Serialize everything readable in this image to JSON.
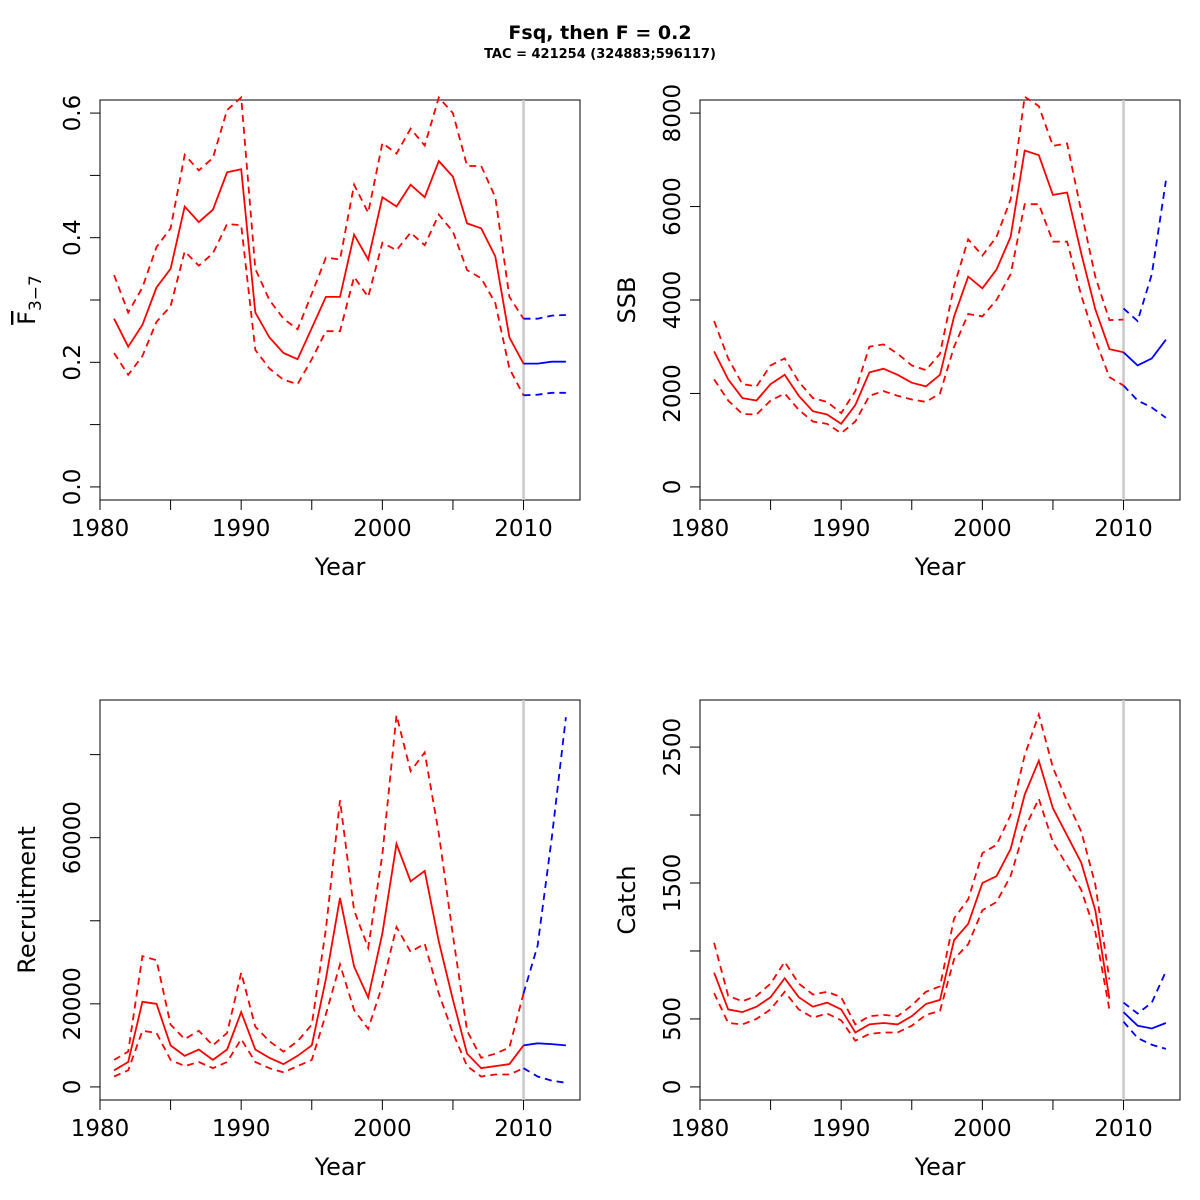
{
  "title": "Fsq, then F = 0.2",
  "subtitle": "TAC = 421254 (324883;596117)",
  "colors": {
    "historical": "#ff0000",
    "projection": "#0000ff",
    "divider": "#c8c8c8"
  },
  "chart_data": [
    {
      "type": "line",
      "xlabel": "Year",
      "ylabel": "F",
      "ylabel_sub": "3−7",
      "xlim": [
        1980,
        2014
      ],
      "ylim": [
        0,
        0.6
      ],
      "xticks": [
        1980,
        1990,
        2000,
        2010
      ],
      "minor_xticks": [
        1985,
        1995,
        2005
      ],
      "yticks": [
        0.0,
        0.2,
        0.4,
        0.6
      ],
      "ytick_labels": [
        "0.0",
        "0.2",
        "0.4",
        "0.6"
      ],
      "minor_yticks": [
        0.1,
        0.3,
        0.5
      ],
      "divider_x": 2010,
      "x": [
        1981,
        1982,
        1983,
        1984,
        1985,
        1986,
        1987,
        1988,
        1989,
        1990,
        1991,
        1992,
        1993,
        1994,
        1995,
        1996,
        1997,
        1998,
        1999,
        2000,
        2001,
        2002,
        2003,
        2004,
        2005,
        2006,
        2007,
        2008,
        2009,
        2010
      ],
      "series": [
        {
          "role": "estimate",
          "values": [
            0.27,
            0.225,
            0.26,
            0.32,
            0.35,
            0.45,
            0.425,
            0.445,
            0.505,
            0.51,
            0.28,
            0.24,
            0.215,
            0.205,
            0.255,
            0.305,
            0.305,
            0.405,
            0.365,
            0.465,
            0.45,
            0.485,
            0.465,
            0.523,
            0.498,
            0.423,
            0.415,
            0.37,
            0.24,
            0.198
          ]
        },
        {
          "role": "upper",
          "values": [
            0.34,
            0.28,
            0.32,
            0.385,
            0.415,
            0.533,
            0.508,
            0.528,
            0.605,
            0.625,
            0.35,
            0.3,
            0.27,
            0.253,
            0.31,
            0.368,
            0.365,
            0.485,
            0.44,
            0.552,
            0.535,
            0.575,
            0.548,
            0.625,
            0.6,
            0.515,
            0.515,
            0.465,
            0.305,
            0.27
          ]
        },
        {
          "role": "lower",
          "values": [
            0.215,
            0.18,
            0.21,
            0.265,
            0.29,
            0.378,
            0.355,
            0.375,
            0.422,
            0.42,
            0.22,
            0.19,
            0.172,
            0.165,
            0.205,
            0.25,
            0.25,
            0.337,
            0.305,
            0.392,
            0.38,
            0.408,
            0.388,
            0.437,
            0.41,
            0.348,
            0.335,
            0.295,
            0.19,
            0.147
          ]
        }
      ],
      "projection_x": [
        2010,
        2011,
        2012,
        2013
      ],
      "projection": [
        {
          "role": "estimate",
          "values": [
            0.198,
            0.198,
            0.201,
            0.201
          ]
        },
        {
          "role": "upper",
          "values": [
            0.27,
            0.27,
            0.275,
            0.276
          ]
        },
        {
          "role": "lower",
          "values": [
            0.147,
            0.148,
            0.151,
            0.151
          ]
        }
      ]
    },
    {
      "type": "line",
      "xlabel": "Year",
      "ylabel": "SSB",
      "xlim": [
        1980,
        2014
      ],
      "ylim": [
        0,
        8000
      ],
      "xticks": [
        1980,
        1990,
        2000,
        2010
      ],
      "minor_xticks": [
        1985,
        1995,
        2005
      ],
      "yticks": [
        0,
        2000,
        4000,
        6000,
        8000
      ],
      "ytick_labels": [
        "0",
        "2000",
        "4000",
        "6000",
        "8000"
      ],
      "minor_yticks": [],
      "divider_x": 2010,
      "x": [
        1981,
        1982,
        1983,
        1984,
        1985,
        1986,
        1987,
        1988,
        1989,
        1990,
        1991,
        1992,
        1993,
        1994,
        1995,
        1996,
        1997,
        1998,
        1999,
        2000,
        2001,
        2002,
        2003,
        2004,
        2005,
        2006,
        2007,
        2008,
        2009,
        2010
      ],
      "series": [
        {
          "role": "estimate",
          "values": [
            2900,
            2300,
            1900,
            1850,
            2200,
            2400,
            1950,
            1620,
            1550,
            1350,
            1750,
            2450,
            2530,
            2400,
            2230,
            2150,
            2400,
            3650,
            4500,
            4250,
            4650,
            5350,
            7200,
            7100,
            6250,
            6300,
            5000,
            3800,
            2950,
            2880
          ]
        },
        {
          "role": "upper",
          "values": [
            3550,
            2750,
            2200,
            2150,
            2600,
            2750,
            2250,
            1900,
            1820,
            1580,
            2050,
            3000,
            3050,
            2850,
            2600,
            2500,
            2850,
            4300,
            5300,
            4950,
            5350,
            6150,
            8350,
            8150,
            7300,
            7350,
            5900,
            4500,
            3570,
            3580
          ]
        },
        {
          "role": "lower",
          "values": [
            2300,
            1850,
            1560,
            1550,
            1850,
            2000,
            1650,
            1400,
            1350,
            1150,
            1400,
            1950,
            2050,
            1950,
            1870,
            1820,
            2000,
            3000,
            3700,
            3650,
            4000,
            4550,
            6050,
            6050,
            5250,
            5250,
            4100,
            3150,
            2350,
            2170
          ]
        }
      ],
      "projection_x": [
        2010,
        2011,
        2012,
        2013
      ],
      "projection": [
        {
          "role": "estimate",
          "values": [
            2880,
            2600,
            2750,
            3150
          ]
        },
        {
          "role": "upper",
          "values": [
            3820,
            3550,
            4550,
            6550
          ]
        },
        {
          "role": "lower",
          "values": [
            2170,
            1850,
            1700,
            1480
          ]
        }
      ]
    },
    {
      "type": "line",
      "xlabel": "Year",
      "ylabel": "Recruitment",
      "xlim": [
        1980,
        2014
      ],
      "ylim": [
        0,
        90000
      ],
      "xticks": [
        1980,
        1990,
        2000,
        2010
      ],
      "minor_xticks": [
        1985,
        1995,
        2005
      ],
      "yticks": [
        0,
        20000,
        60000
      ],
      "ytick_labels": [
        "0",
        "20000",
        "60000"
      ],
      "minor_yticks": [
        40000,
        80000
      ],
      "divider_x": 2010,
      "x": [
        1981,
        1982,
        1983,
        1984,
        1985,
        1986,
        1987,
        1988,
        1989,
        1990,
        1991,
        1992,
        1993,
        1994,
        1995,
        1996,
        1997,
        1998,
        1999,
        2000,
        2001,
        2002,
        2003,
        2004,
        2005,
        2006,
        2007,
        2008,
        2009,
        2010
      ],
      "series": [
        {
          "role": "estimate",
          "values": [
            4000,
            6000,
            20500,
            20000,
            10000,
            7500,
            9000,
            6500,
            9000,
            18000,
            9000,
            7000,
            5500,
            7500,
            10000,
            26000,
            45500,
            29000,
            21500,
            37000,
            58500,
            49500,
            52000,
            35000,
            21000,
            8000,
            4500,
            5000,
            5500,
            10000
          ]
        },
        {
          "role": "upper",
          "values": [
            6500,
            8500,
            31500,
            30500,
            15000,
            11500,
            13500,
            10000,
            13000,
            27500,
            14500,
            11000,
            8500,
            11000,
            15000,
            38000,
            69000,
            42500,
            33500,
            56000,
            89500,
            76000,
            80500,
            61000,
            36500,
            13500,
            7000,
            8000,
            9500,
            22500
          ]
        },
        {
          "role": "lower",
          "values": [
            2500,
            4000,
            13500,
            13000,
            6500,
            5000,
            6000,
            4500,
            6000,
            11500,
            6000,
            4500,
            3500,
            5000,
            6500,
            17500,
            29500,
            18500,
            14000,
            24500,
            38500,
            32500,
            34500,
            22500,
            13000,
            5000,
            2500,
            3000,
            3000,
            4500
          ]
        }
      ],
      "projection_x": [
        2010,
        2011,
        2012,
        2013
      ],
      "projection": [
        {
          "role": "estimate",
          "values": [
            10000,
            10500,
            10300,
            10000
          ]
        },
        {
          "role": "upper",
          "values": [
            22500,
            34000,
            60000,
            89000
          ]
        },
        {
          "role": "lower",
          "values": [
            4500,
            2500,
            1500,
            1000
          ]
        }
      ]
    },
    {
      "type": "line",
      "xlabel": "Year",
      "ylabel": "Catch",
      "xlim": [
        1980,
        2014
      ],
      "ylim": [
        0,
        2750
      ],
      "xticks": [
        1980,
        1990,
        2000,
        2010
      ],
      "minor_xticks": [
        1985,
        1995,
        2005
      ],
      "yticks": [
        0,
        500,
        1500,
        2500
      ],
      "ytick_labels": [
        "0",
        "500",
        "1500",
        "2500"
      ],
      "minor_yticks": [
        1000,
        2000
      ],
      "divider_x": 2010,
      "x": [
        1981,
        1982,
        1983,
        1984,
        1985,
        1986,
        1987,
        1988,
        1989,
        1990,
        1991,
        1992,
        1993,
        1994,
        1995,
        1996,
        1997,
        1998,
        1999,
        2000,
        2001,
        2002,
        2003,
        2004,
        2005,
        2006,
        2007,
        2008,
        2009
      ],
      "series": [
        {
          "role": "estimate",
          "values": [
            840,
            570,
            550,
            590,
            660,
            800,
            660,
            590,
            620,
            570,
            400,
            460,
            470,
            460,
            520,
            610,
            640,
            1080,
            1200,
            1500,
            1550,
            1750,
            2150,
            2400,
            2050,
            1850,
            1650,
            1300,
            650
          ]
        },
        {
          "role": "upper",
          "values": [
            1060,
            670,
            630,
            670,
            760,
            920,
            760,
            680,
            700,
            660,
            460,
            520,
            530,
            520,
            600,
            700,
            740,
            1240,
            1380,
            1720,
            1780,
            2000,
            2440,
            2740,
            2350,
            2100,
            1880,
            1490,
            790
          ]
        },
        {
          "role": "lower",
          "values": [
            690,
            470,
            460,
            500,
            570,
            700,
            570,
            510,
            540,
            490,
            340,
            390,
            400,
            400,
            450,
            530,
            560,
            940,
            1050,
            1300,
            1360,
            1550,
            1900,
            2120,
            1800,
            1630,
            1450,
            1140,
            570
          ]
        }
      ],
      "projection_x": [
        2010,
        2011,
        2012,
        2013
      ],
      "projection": [
        {
          "role": "estimate",
          "values": [
            550,
            450,
            430,
            470
          ]
        },
        {
          "role": "upper",
          "values": [
            620,
            540,
            620,
            850
          ]
        },
        {
          "role": "lower",
          "values": [
            480,
            360,
            310,
            280
          ]
        }
      ]
    }
  ]
}
